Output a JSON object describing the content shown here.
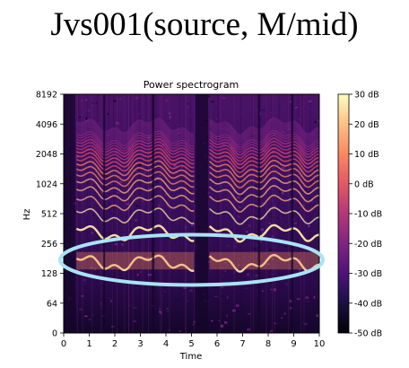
{
  "header": {
    "title": "Jvs001(source, M/mid)"
  },
  "chart_data": {
    "type": "heatmap",
    "title": "Power spectrogram",
    "xlabel": "Time",
    "ylabel": "Hz",
    "x_ticks": [
      0,
      1,
      2,
      3,
      4,
      5,
      6,
      7,
      8,
      9,
      10
    ],
    "xlim": [
      0,
      10
    ],
    "y_scale": "log2",
    "y_ticks": [
      0,
      64,
      128,
      256,
      512,
      1024,
      2048,
      4096,
      8192
    ],
    "colorbar": {
      "label_ticks": [
        "30 dB",
        "20 dB",
        "10 dB",
        "0 dB",
        "-10 dB",
        "-20 dB",
        "-30 dB",
        "-40 dB",
        "-50 dB"
      ],
      "range": [
        -50,
        30
      ],
      "colormap": "magma"
    },
    "voiced_regions": [
      {
        "start": 0.5,
        "end": 5.1
      },
      {
        "start": 5.7,
        "end": 10.0
      }
    ],
    "annotation": {
      "shape": "ellipse",
      "color": "#a8e4f5",
      "time_range": [
        0.0,
        10.0
      ],
      "freq_center_hz": 175
    }
  }
}
